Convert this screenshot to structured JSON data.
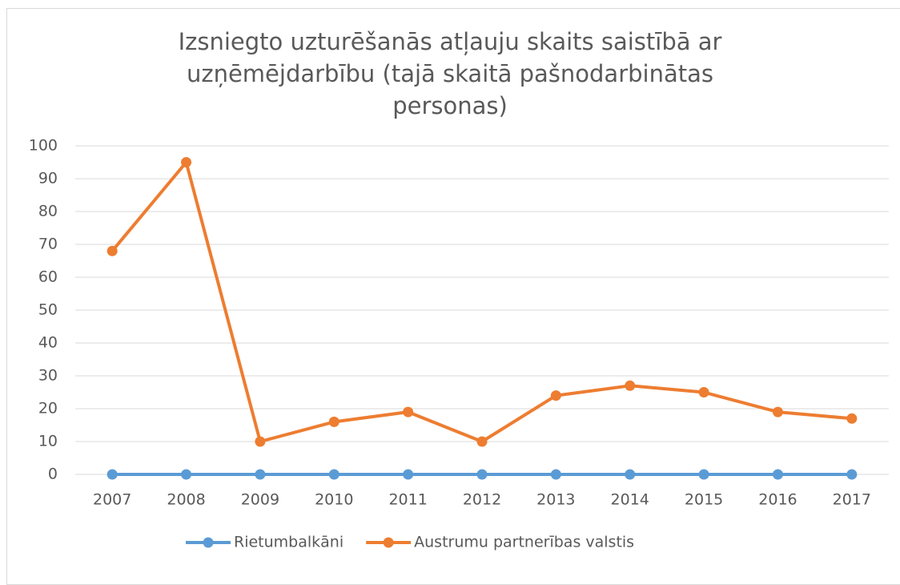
{
  "chart_data": {
    "type": "line",
    "title": "Izsniegto uzturēšanās atļauju skaits saistībā ar uzņēmējdarbību (tajā skaitā pašnodarbinātas personas)",
    "categories": [
      "2007",
      "2008",
      "2009",
      "2010",
      "2011",
      "2012",
      "2013",
      "2014",
      "2015",
      "2016",
      "2017"
    ],
    "series": [
      {
        "name": "Rietumbalkāni",
        "color": "#5b9bd5",
        "values": [
          0,
          0,
          0,
          0,
          0,
          0,
          0,
          0,
          0,
          0,
          0
        ]
      },
      {
        "name": "Austrumu partnerības valstis",
        "color": "#ed7d31",
        "values": [
          68,
          95,
          10,
          16,
          19,
          10,
          24,
          27,
          25,
          19,
          17
        ]
      }
    ],
    "ylim": [
      0,
      100
    ],
    "yticks": [
      0,
      10,
      20,
      30,
      40,
      50,
      60,
      70,
      80,
      90,
      100
    ],
    "grid": true,
    "legend": "bottom"
  }
}
